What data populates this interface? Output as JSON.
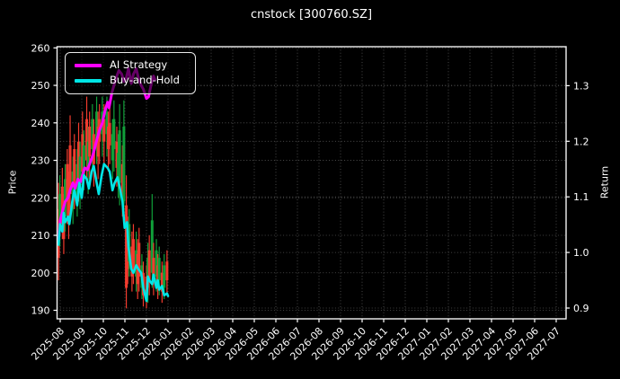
{
  "chart": {
    "title": "cnstock [300760.SZ]",
    "ylabel_left": "Price",
    "ylabel_right": "Return",
    "legend": [
      {
        "label": "AI Strategy",
        "color": "#ff00ff"
      },
      {
        "label": "Buy-and-Hold",
        "color": "#00e5e5"
      }
    ]
  },
  "chart_data": {
    "type": "line+candlestick",
    "title": "cnstock [300760.SZ]",
    "background": "#000000",
    "grid": true,
    "legend_position": "upper left",
    "x_ticks": [
      "2025-08",
      "2025-09",
      "2025-10",
      "2025-11",
      "2025-12",
      "2026-01",
      "2026-02",
      "2026-03",
      "2026-04",
      "2026-05",
      "2026-06",
      "2026-07",
      "2026-08",
      "2026-09",
      "2026-10",
      "2026-11",
      "2026-12",
      "2027-01",
      "2027-02",
      "2027-03",
      "2027-04",
      "2027-05",
      "2027-06",
      "2027-07"
    ],
    "left_axis": {
      "label": "Price",
      "ticks": [
        190,
        200,
        210,
        220,
        230,
        240,
        250,
        260
      ],
      "range": [
        188,
        260.3
      ]
    },
    "right_axis": {
      "label": "Return",
      "ticks": [
        0.9,
        1.0,
        1.1,
        1.2,
        1.3
      ],
      "range": [
        0.88,
        1.37
      ]
    },
    "colors": {
      "up": "#10a03a",
      "down": "#f23b2e",
      "ai": "#ff00ff",
      "hold": "#00e5e5",
      "grid": "#585858",
      "text": "#ffffff"
    },
    "series": [
      {
        "name": "AI Strategy",
        "axis": "left",
        "color": "#ff00ff",
        "points": [
          [
            "2025-07-29",
            208.5
          ],
          [
            "2025-08-01",
            214
          ],
          [
            "2025-08-05",
            217
          ],
          [
            "2025-08-08",
            219
          ],
          [
            "2025-08-12",
            220
          ],
          [
            "2025-08-15",
            222
          ],
          [
            "2025-08-19",
            224
          ],
          [
            "2025-08-22",
            222.5
          ],
          [
            "2025-08-26",
            225
          ],
          [
            "2025-08-29",
            224
          ],
          [
            "2025-09-02",
            226
          ],
          [
            "2025-09-05",
            228
          ],
          [
            "2025-09-09",
            227.5
          ],
          [
            "2025-09-12",
            229
          ],
          [
            "2025-09-16",
            231
          ],
          [
            "2025-09-19",
            233
          ],
          [
            "2025-09-23",
            236
          ],
          [
            "2025-09-26",
            238
          ],
          [
            "2025-09-30",
            240
          ],
          [
            "2025-10-03",
            243
          ],
          [
            "2025-10-07",
            245.5
          ],
          [
            "2025-10-09",
            244
          ],
          [
            "2025-10-13",
            248
          ],
          [
            "2025-10-16",
            250
          ],
          [
            "2025-10-20",
            252.5
          ],
          [
            "2025-10-23",
            254
          ],
          [
            "2025-10-27",
            253
          ],
          [
            "2025-10-30",
            251
          ],
          [
            "2025-11-03",
            252
          ],
          [
            "2025-11-06",
            254.5
          ],
          [
            "2025-11-10",
            250.5
          ],
          [
            "2025-11-13",
            253
          ],
          [
            "2025-11-17",
            254.5
          ],
          [
            "2025-11-20",
            252
          ],
          [
            "2025-11-24",
            250
          ],
          [
            "2025-11-27",
            249
          ],
          [
            "2025-12-01",
            246.5
          ],
          [
            "2025-12-04",
            247
          ],
          [
            "2025-12-08",
            250.5
          ],
          [
            "2025-12-11",
            252.5
          ],
          [
            "2025-12-13",
            251.5
          ]
        ]
      },
      {
        "name": "Buy-and-Hold",
        "axis": "left",
        "color": "#00e5e5",
        "points": [
          [
            "2025-07-29",
            207.5
          ],
          [
            "2025-07-31",
            213
          ],
          [
            "2025-08-04",
            211
          ],
          [
            "2025-08-06",
            216
          ],
          [
            "2025-08-08",
            213.5
          ],
          [
            "2025-08-12",
            215
          ],
          [
            "2025-08-14",
            213
          ],
          [
            "2025-08-18",
            219
          ],
          [
            "2025-08-21",
            222
          ],
          [
            "2025-08-25",
            218
          ],
          [
            "2025-08-28",
            224
          ],
          [
            "2025-09-01",
            220
          ],
          [
            "2025-09-04",
            226
          ],
          [
            "2025-09-08",
            225
          ],
          [
            "2025-09-11",
            222.5
          ],
          [
            "2025-09-15",
            227
          ],
          [
            "2025-09-18",
            228.5
          ],
          [
            "2025-09-22",
            224
          ],
          [
            "2025-09-25",
            221
          ],
          [
            "2025-09-29",
            226
          ],
          [
            "2025-10-02",
            229
          ],
          [
            "2025-10-07",
            228
          ],
          [
            "2025-10-10",
            227
          ],
          [
            "2025-10-14",
            222
          ],
          [
            "2025-10-17",
            224
          ],
          [
            "2025-10-21",
            225.5
          ],
          [
            "2025-10-24",
            223
          ],
          [
            "2025-10-28",
            219
          ],
          [
            "2025-10-31",
            212
          ],
          [
            "2025-11-04",
            213.5
          ],
          [
            "2025-11-06",
            207
          ],
          [
            "2025-11-10",
            201
          ],
          [
            "2025-11-13",
            200
          ],
          [
            "2025-11-17",
            202
          ],
          [
            "2025-11-20",
            201
          ],
          [
            "2025-11-24",
            200
          ],
          [
            "2025-11-27",
            196
          ],
          [
            "2025-12-01",
            192.5
          ],
          [
            "2025-12-03",
            199
          ],
          [
            "2025-12-05",
            198
          ],
          [
            "2025-12-09",
            197
          ],
          [
            "2025-12-11",
            199.5
          ],
          [
            "2025-12-15",
            196
          ],
          [
            "2025-12-17",
            198
          ],
          [
            "2025-12-19",
            195.5
          ],
          [
            "2025-12-23",
            196.5
          ],
          [
            "2025-12-26",
            194
          ],
          [
            "2025-12-30",
            194.5
          ],
          [
            "2026-01-01",
            193.8
          ]
        ]
      }
    ],
    "candles": [
      [
        "2025-07-29",
        198,
        224,
        204,
        217,
        "d"
      ],
      [
        "2025-07-31",
        207,
        226,
        211,
        221,
        "u"
      ],
      [
        "2025-08-04",
        209,
        228,
        213,
        223,
        "d"
      ],
      [
        "2025-08-06",
        205,
        221,
        209,
        217,
        "d"
      ],
      [
        "2025-08-08",
        211,
        229,
        215,
        225,
        "u"
      ],
      [
        "2025-08-11",
        213,
        233,
        219,
        229,
        "d"
      ],
      [
        "2025-08-13",
        209,
        227,
        213,
        221,
        "d"
      ],
      [
        "2025-08-15",
        215,
        242,
        221,
        234,
        "d"
      ],
      [
        "2025-08-19",
        213,
        231,
        217,
        227,
        "u"
      ],
      [
        "2025-08-21",
        217,
        237,
        223,
        233,
        "d"
      ],
      [
        "2025-08-25",
        215,
        233,
        219,
        229,
        "u"
      ],
      [
        "2025-08-27",
        219,
        240,
        225,
        235,
        "d"
      ],
      [
        "2025-08-29",
        217,
        235,
        223,
        231,
        "u"
      ],
      [
        "2025-09-02",
        220,
        243,
        227,
        237,
        "d"
      ],
      [
        "2025-09-04",
        222,
        238,
        226,
        234,
        "u"
      ],
      [
        "2025-09-08",
        224,
        247,
        230,
        241,
        "d"
      ],
      [
        "2025-09-10",
        221,
        239,
        227,
        235,
        "u"
      ],
      [
        "2025-09-12",
        225,
        243,
        231,
        239,
        "d"
      ],
      [
        "2025-09-16",
        227,
        245,
        233,
        241,
        "u"
      ],
      [
        "2025-09-18",
        223,
        241,
        229,
        237,
        "d"
      ],
      [
        "2025-09-22",
        229,
        247,
        235,
        243,
        "u"
      ],
      [
        "2025-09-24",
        225,
        243,
        231,
        239,
        "d"
      ],
      [
        "2025-09-26",
        229,
        245,
        235,
        241,
        "d"
      ],
      [
        "2025-09-30",
        231,
        247,
        237,
        243,
        "u"
      ],
      [
        "2025-10-02",
        229,
        245,
        235,
        241,
        "d"
      ],
      [
        "2025-10-06",
        231,
        247,
        237,
        243,
        "u"
      ],
      [
        "2025-10-08",
        227,
        243,
        233,
        239,
        "d"
      ],
      [
        "2025-10-10",
        229,
        245,
        234,
        240,
        "d"
      ],
      [
        "2025-10-14",
        225,
        241,
        230,
        237,
        "u"
      ],
      [
        "2025-10-16",
        227,
        246,
        233,
        241,
        "u"
      ],
      [
        "2025-10-20",
        223,
        239,
        228,
        235,
        "d"
      ],
      [
        "2025-10-22",
        220,
        237,
        225,
        232,
        "u"
      ],
      [
        "2025-10-24",
        218,
        245,
        224,
        238,
        "u"
      ],
      [
        "2025-10-28",
        215,
        234,
        220,
        229,
        "d"
      ],
      [
        "2025-10-30",
        213,
        246,
        219,
        239,
        "u"
      ],
      [
        "2025-11-03",
        190.5,
        226,
        196,
        218,
        "d"
      ],
      [
        "2025-11-05",
        197,
        215,
        201,
        211,
        "d"
      ],
      [
        "2025-11-07",
        199,
        217,
        203,
        213,
        "u"
      ],
      [
        "2025-11-11",
        195,
        211,
        199,
        207,
        "d"
      ],
      [
        "2025-11-13",
        197,
        213,
        201,
        209,
        "d"
      ],
      [
        "2025-11-17",
        195,
        211,
        199,
        206,
        "u"
      ],
      [
        "2025-11-19",
        193,
        209,
        197,
        205,
        "d"
      ],
      [
        "2025-11-21",
        195,
        212,
        199,
        208,
        "d"
      ],
      [
        "2025-11-25",
        193,
        205,
        196,
        202,
        "u"
      ],
      [
        "2025-11-27",
        191,
        203,
        194,
        200,
        "d"
      ],
      [
        "2025-12-01",
        190.5,
        202,
        193.5,
        199,
        "d"
      ],
      [
        "2025-12-03",
        192,
        208,
        196,
        204,
        "u"
      ],
      [
        "2025-12-05",
        194,
        210,
        198,
        206,
        "d"
      ],
      [
        "2025-12-09",
        196,
        221,
        200,
        214,
        "u"
      ],
      [
        "2025-12-11",
        194,
        208,
        198,
        204,
        "d"
      ],
      [
        "2025-12-15",
        195,
        209,
        199,
        206,
        "u"
      ],
      [
        "2025-12-17",
        193,
        205,
        196,
        202,
        "d"
      ],
      [
        "2025-12-19",
        194,
        207,
        198,
        204,
        "u"
      ],
      [
        "2025-12-23",
        192,
        203,
        195,
        200,
        "d"
      ],
      [
        "2025-12-26",
        193,
        205,
        196,
        202,
        "u"
      ],
      [
        "2025-12-30",
        194,
        206,
        198,
        203,
        "d"
      ]
    ]
  }
}
